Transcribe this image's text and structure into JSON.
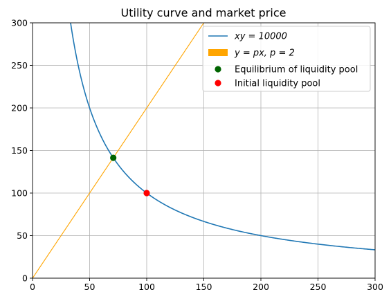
{
  "chart_data": {
    "type": "line",
    "title": "Utility curve and market price",
    "xlabel": "",
    "ylabel": "",
    "xlim": [
      0,
      300
    ],
    "ylim": [
      0,
      300
    ],
    "xticks": [
      0,
      50,
      100,
      150,
      200,
      250,
      300
    ],
    "yticks": [
      0,
      50,
      100,
      150,
      200,
      250,
      300
    ],
    "grid": true,
    "legend_position": "top-right",
    "series": [
      {
        "name": "xy = 10000",
        "kind": "curve",
        "k": 10000,
        "x_start": 33.3,
        "x_end": 300,
        "color": "#1f77b4"
      },
      {
        "name": "y = px, p = 2",
        "kind": "line",
        "slope": 2,
        "x_start": 0,
        "x_end": 150,
        "color": "#ffa500"
      },
      {
        "name": "Equilibrium of liquidity pool",
        "kind": "point",
        "x": 70.71,
        "y": 141.42,
        "color": "#006400"
      },
      {
        "name": "Initial liquidity pool",
        "kind": "point",
        "x": 100,
        "y": 100,
        "color": "#ff0000"
      }
    ]
  }
}
